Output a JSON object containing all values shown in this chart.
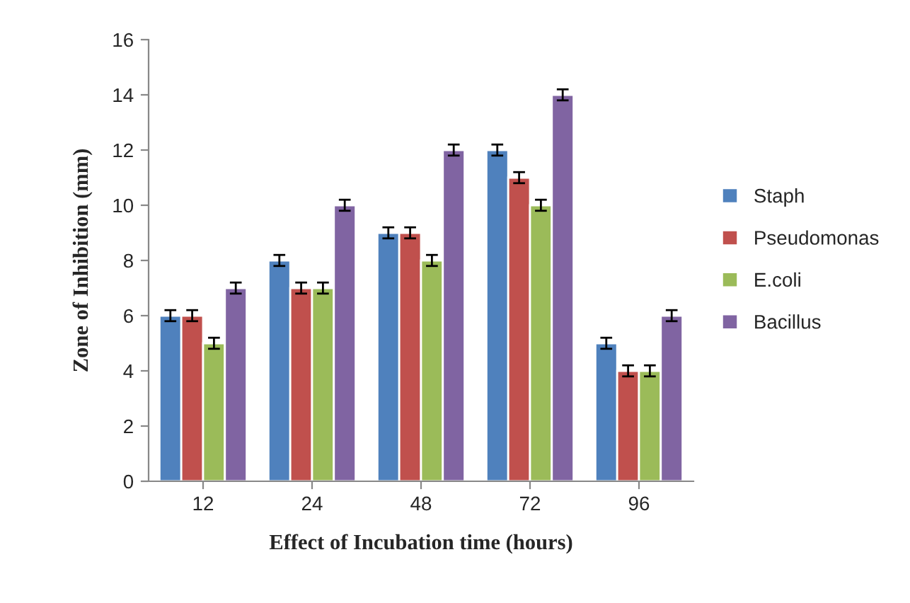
{
  "chart_data": {
    "type": "bar",
    "xlabel": "Effect of Incubation time (hours)",
    "ylabel": "Zone of Inhibition (mm)",
    "categories": [
      "12",
      "24",
      "48",
      "72",
      "96"
    ],
    "series": [
      {
        "name": "Staph",
        "color": "#4f81bd",
        "values": [
          6,
          8,
          9,
          12,
          5
        ],
        "errors": [
          0.2,
          0.2,
          0.2,
          0.2,
          0.2
        ]
      },
      {
        "name": "Pseudomonas",
        "color": "#c0504d",
        "values": [
          6,
          7,
          9,
          11,
          4
        ],
        "errors": [
          0.2,
          0.2,
          0.2,
          0.2,
          0.2
        ]
      },
      {
        "name": "E.coli",
        "color": "#9bbb59",
        "values": [
          5,
          7,
          8,
          10,
          4
        ],
        "errors": [
          0.2,
          0.2,
          0.2,
          0.2,
          0.2
        ]
      },
      {
        "name": "Bacillus",
        "color": "#8064a2",
        "values": [
          7,
          10,
          12,
          14,
          6
        ],
        "errors": [
          0.2,
          0.2,
          0.2,
          0.2,
          0.2
        ]
      }
    ],
    "ylim": [
      0,
      16
    ],
    "yticks": [
      0,
      2,
      4,
      6,
      8,
      10,
      12,
      14,
      16
    ],
    "grid": false,
    "legend": "right"
  }
}
